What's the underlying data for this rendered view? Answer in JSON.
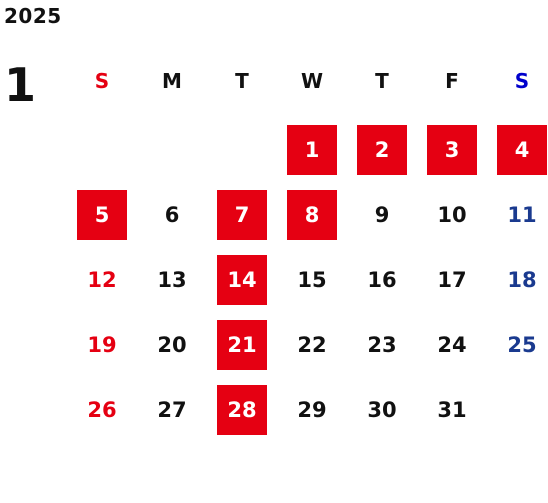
{
  "calendar": {
    "year": "2025",
    "month": "1",
    "weekdays": [
      "S",
      "M",
      "T",
      "W",
      "T",
      "F",
      "S"
    ],
    "weekday_colors": [
      "#e50012",
      "#111111",
      "#111111",
      "#111111",
      "#111111",
      "#111111",
      "#0000cc"
    ],
    "first_weekday_index": 3,
    "days": [
      {
        "label": "1",
        "holiday": true
      },
      {
        "label": "2",
        "holiday": true
      },
      {
        "label": "3",
        "holiday": true
      },
      {
        "label": "4",
        "holiday": true
      },
      {
        "label": "5",
        "holiday": true
      },
      {
        "label": "6",
        "holiday": false
      },
      {
        "label": "7",
        "holiday": true
      },
      {
        "label": "8",
        "holiday": true
      },
      {
        "label": "9",
        "holiday": false
      },
      {
        "label": "10",
        "holiday": false
      },
      {
        "label": "11",
        "holiday": false
      },
      {
        "label": "12",
        "holiday": false
      },
      {
        "label": "13",
        "holiday": false
      },
      {
        "label": "14",
        "holiday": true
      },
      {
        "label": "15",
        "holiday": false
      },
      {
        "label": "16",
        "holiday": false
      },
      {
        "label": "17",
        "holiday": false
      },
      {
        "label": "18",
        "holiday": false
      },
      {
        "label": "19",
        "holiday": false
      },
      {
        "label": "20",
        "holiday": false
      },
      {
        "label": "21",
        "holiday": true
      },
      {
        "label": "22",
        "holiday": false
      },
      {
        "label": "23",
        "holiday": false
      },
      {
        "label": "24",
        "holiday": false
      },
      {
        "label": "25",
        "holiday": false
      },
      {
        "label": "26",
        "holiday": false
      },
      {
        "label": "27",
        "holiday": false
      },
      {
        "label": "28",
        "holiday": true
      },
      {
        "label": "29",
        "holiday": false
      },
      {
        "label": "30",
        "holiday": false
      },
      {
        "label": "31",
        "holiday": false
      }
    ],
    "colors": {
      "holiday_bg": "#e50012",
      "holiday_text": "#ffffff",
      "sunday_text": "#e50012",
      "saturday_text": "#1a3a8f",
      "weekday_text": "#111111"
    }
  }
}
